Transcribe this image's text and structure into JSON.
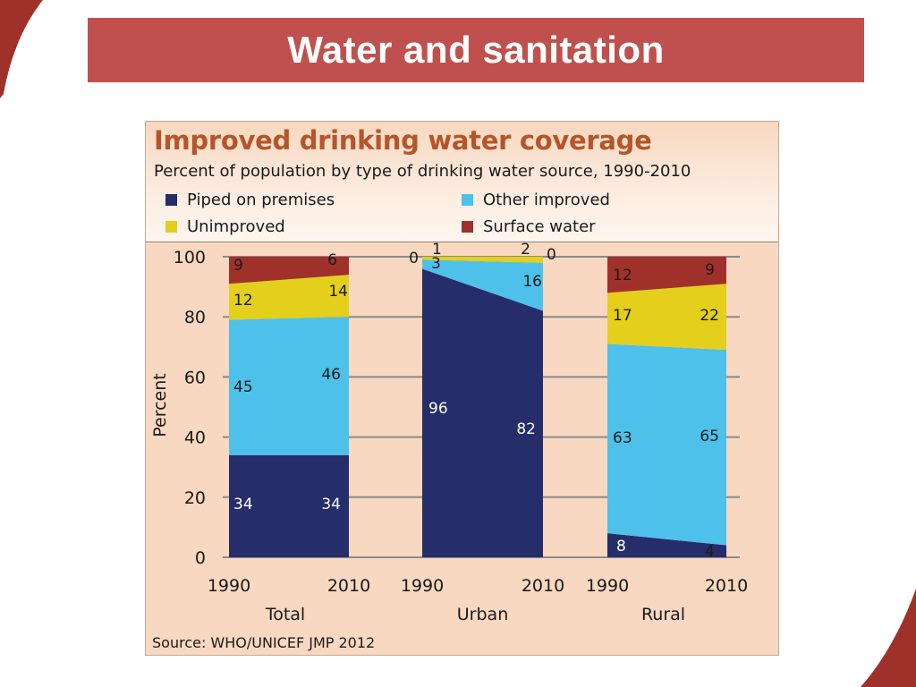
{
  "slide": {
    "title": "Water and sanitation"
  },
  "chart": {
    "title": "Improved drinking water coverage",
    "subtitle": "Percent of population by type of drinking water source, 1990-2010",
    "source": "Source:  WHO/UNICEF JMP 2012",
    "ylabel": "Percent",
    "legend": [
      {
        "label": "Piped on premises",
        "color": "#252d6b"
      },
      {
        "label": "Other improved",
        "color": "#4dc1ea"
      },
      {
        "label": "Unimproved",
        "color": "#e3cf1c"
      },
      {
        "label": "Surface water",
        "color": "#a0312a"
      }
    ]
  },
  "chart_data": {
    "type": "area",
    "title": "Improved drinking water coverage",
    "subtitle": "Percent of population by type of drinking water source, 1990-2010",
    "ylabel": "Percent",
    "ylim": [
      0,
      100
    ],
    "yticks": [
      "0",
      "20",
      "40",
      "60",
      "80",
      "100"
    ],
    "grid": true,
    "stacked": true,
    "groups": [
      {
        "name": "Total",
        "x": [
          "1990",
          "2010"
        ],
        "series": [
          {
            "name": "Piped on premises",
            "values": [
              34,
              34
            ]
          },
          {
            "name": "Other improved",
            "values": [
              45,
              46
            ]
          },
          {
            "name": "Unimproved",
            "values": [
              12,
              14
            ]
          },
          {
            "name": "Surface water",
            "values": [
              9,
              6
            ]
          }
        ]
      },
      {
        "name": "Urban",
        "x": [
          "1990",
          "2010"
        ],
        "series": [
          {
            "name": "Piped on premises",
            "values": [
              96,
              82
            ]
          },
          {
            "name": "Other improved",
            "values": [
              3,
              16
            ]
          },
          {
            "name": "Unimproved",
            "values": [
              1,
              2
            ]
          },
          {
            "name": "Surface water",
            "values": [
              0,
              0
            ]
          }
        ]
      },
      {
        "name": "Rural",
        "x": [
          "1990",
          "2010"
        ],
        "series": [
          {
            "name": "Piped on premises",
            "values": [
              8,
              4
            ]
          },
          {
            "name": "Other improved",
            "values": [
              63,
              65
            ]
          },
          {
            "name": "Unimproved",
            "values": [
              17,
              22
            ]
          },
          {
            "name": "Surface water",
            "values": [
              12,
              9
            ]
          }
        ]
      }
    ]
  }
}
